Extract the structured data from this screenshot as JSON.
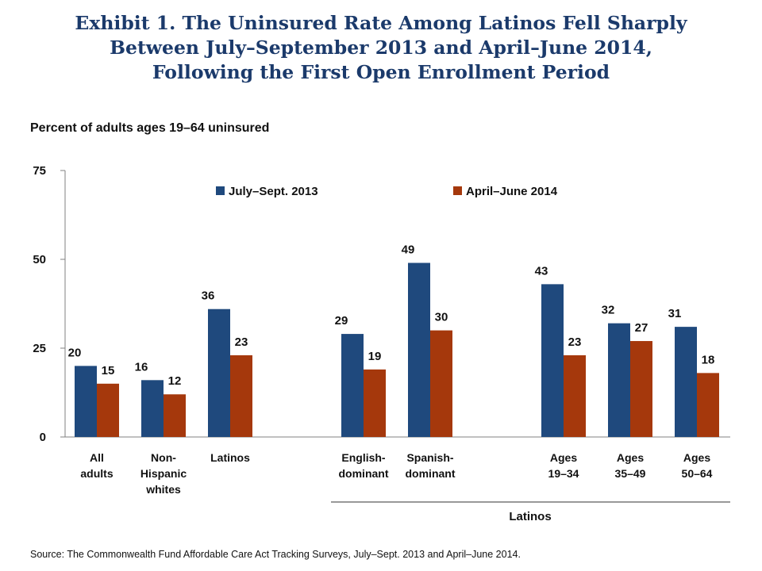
{
  "title": {
    "line1": "Exhibit 1. The Uninsured Rate Among Latinos Fell Sharply",
    "line2": "Between July–September 2013 and April–June 2014,",
    "line3": "Following the First Open Enrollment Period"
  },
  "source": "Source: The Commonwealth Fund Affordable Care Act Tracking Surveys, July–Sept. 2013 and April–June 2014.",
  "colors": {
    "series1": "#1f497d",
    "series2": "#a5380c"
  },
  "chart_data": {
    "type": "bar",
    "ylabel": "Percent of adults ages 19–64 uninsured",
    "xlabel": "",
    "ylim": [
      0,
      75
    ],
    "yticks": [
      0,
      25,
      50,
      75
    ],
    "grid": false,
    "legend_position": "top",
    "group_label": "Latinos",
    "categories": [
      [
        "All",
        "adults"
      ],
      [
        "Non-",
        "Hispanic",
        "whites"
      ],
      [
        "Latinos"
      ],
      [
        "English-",
        "dominant"
      ],
      [
        "Spanish-",
        "dominant"
      ],
      [
        "Ages",
        "19–34"
      ],
      [
        "Ages",
        "35–49"
      ],
      [
        "Ages",
        "50–64"
      ]
    ],
    "series": [
      {
        "name": "July–Sept. 2013",
        "values": [
          20,
          16,
          36,
          29,
          49,
          43,
          32,
          31
        ]
      },
      {
        "name": "April–June 2014",
        "values": [
          15,
          12,
          23,
          19,
          30,
          23,
          27,
          18
        ]
      }
    ]
  }
}
